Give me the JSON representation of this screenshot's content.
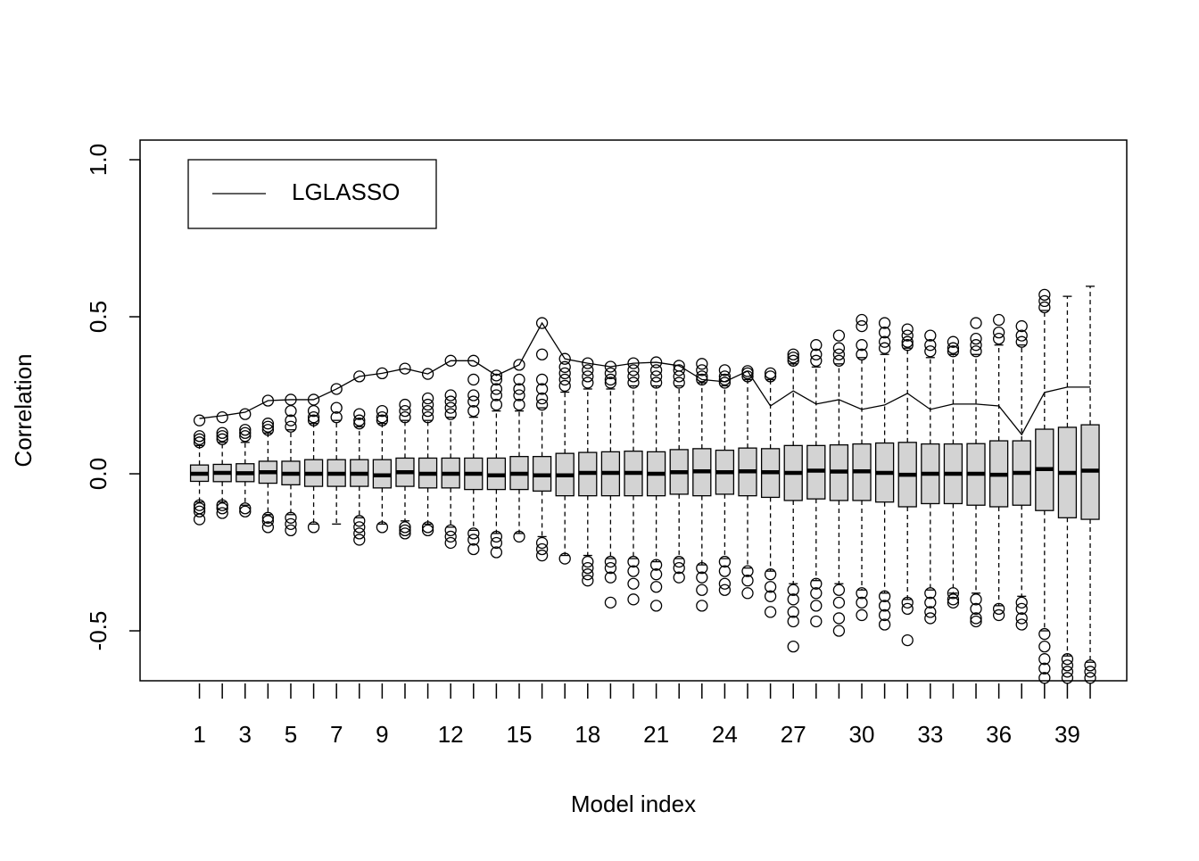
{
  "chart_data": {
    "type": "boxplot",
    "xlabel": "Model index",
    "ylabel": "Correlation",
    "categories": [
      "1",
      null,
      "3",
      null,
      "5",
      null,
      "7",
      null,
      "9",
      null,
      null,
      "12",
      null,
      null,
      "15",
      null,
      null,
      "18",
      null,
      null,
      "21",
      null,
      null,
      "24",
      null,
      null,
      "27",
      null,
      null,
      "30",
      null,
      null,
      "33",
      null,
      null,
      "36",
      null,
      null,
      "39",
      null
    ],
    "box_color": "#d3d3d3",
    "whislo": [
      -0.09,
      -0.09,
      -0.1,
      -0.13,
      -0.13,
      -0.16,
      -0.16,
      -0.14,
      -0.16,
      -0.15,
      -0.16,
      -0.17,
      -0.18,
      -0.19,
      -0.19,
      -0.2,
      -0.26,
      -0.26,
      -0.27,
      -0.27,
      -0.28,
      -0.27,
      -0.29,
      -0.27,
      -0.3,
      -0.31,
      -0.35,
      -0.34,
      -0.35,
      -0.37,
      -0.38,
      -0.4,
      -0.37,
      -0.38,
      -0.38,
      -0.42,
      -0.39,
      -0.5,
      -0.58,
      -0.6
    ],
    "q1": [
      -0.024,
      -0.025,
      -0.025,
      -0.03,
      -0.035,
      -0.04,
      -0.04,
      -0.04,
      -0.045,
      -0.04,
      -0.045,
      -0.045,
      -0.05,
      -0.05,
      -0.05,
      -0.055,
      -0.07,
      -0.07,
      -0.07,
      -0.07,
      -0.07,
      -0.065,
      -0.07,
      -0.065,
      -0.07,
      -0.075,
      -0.085,
      -0.08,
      -0.085,
      -0.085,
      -0.09,
      -0.105,
      -0.095,
      -0.095,
      -0.1,
      -0.105,
      -0.1,
      -0.117,
      -0.14,
      -0.145
    ],
    "median": [
      0.0,
      0.003,
      0.002,
      0.005,
      0.0,
      0.0,
      0.0,
      0.0,
      -0.005,
      0.005,
      0.0,
      0.0,
      0.0,
      -0.005,
      0.0,
      -0.005,
      -0.005,
      0.003,
      0.003,
      0.003,
      0.0,
      0.005,
      0.008,
      0.005,
      0.008,
      0.005,
      0.003,
      0.01,
      0.007,
      0.008,
      0.003,
      -0.003,
      0.0,
      0.0,
      0.0,
      -0.003,
      0.003,
      0.015,
      0.003,
      0.01
    ],
    "q3": [
      0.028,
      0.03,
      0.032,
      0.04,
      0.04,
      0.045,
      0.045,
      0.045,
      0.045,
      0.05,
      0.05,
      0.05,
      0.05,
      0.05,
      0.055,
      0.055,
      0.065,
      0.068,
      0.07,
      0.072,
      0.07,
      0.077,
      0.08,
      0.075,
      0.082,
      0.08,
      0.09,
      0.09,
      0.092,
      0.095,
      0.098,
      0.1,
      0.095,
      0.095,
      0.096,
      0.105,
      0.105,
      0.142,
      0.148,
      0.156
    ],
    "whishi": [
      0.09,
      0.1,
      0.1,
      0.13,
      0.14,
      0.16,
      0.17,
      0.15,
      0.16,
      0.17,
      0.17,
      0.18,
      0.18,
      0.2,
      0.2,
      0.21,
      0.26,
      0.27,
      0.27,
      0.28,
      0.28,
      0.28,
      0.29,
      0.28,
      0.3,
      0.3,
      0.35,
      0.34,
      0.35,
      0.37,
      0.38,
      0.4,
      0.37,
      0.38,
      0.38,
      0.41,
      0.41,
      0.52,
      0.565,
      0.597
    ],
    "fliers": [
      [
        0.17,
        0.12,
        0.11,
        0.1,
        -0.1,
        -0.11,
        -0.12,
        -0.145
      ],
      [
        0.18,
        0.13,
        0.12,
        0.11,
        -0.1,
        -0.11,
        -0.125
      ],
      [
        0.19,
        0.14,
        0.13,
        0.12,
        -0.11,
        -0.12
      ],
      [
        0.233,
        0.16,
        0.15,
        0.14,
        -0.14,
        -0.15,
        -0.17
      ],
      [
        0.236,
        0.2,
        0.17,
        0.15,
        -0.14,
        -0.16,
        -0.18
      ],
      [
        0.236,
        0.2,
        0.18,
        0.17,
        -0.17
      ],
      [
        0.27,
        0.21,
        0.18
      ],
      [
        0.31,
        0.19,
        0.17,
        0.16,
        -0.15,
        -0.17,
        -0.19,
        -0.21
      ],
      [
        0.32,
        0.2,
        0.18,
        0.17,
        -0.17
      ],
      [
        0.335,
        0.22,
        0.2,
        0.18,
        -0.17,
        -0.18,
        -0.19
      ],
      [
        0.318,
        0.24,
        0.22,
        0.2,
        0.18,
        -0.17,
        -0.18
      ],
      [
        0.36,
        0.25,
        0.23,
        0.21,
        0.19,
        -0.18,
        -0.2,
        -0.22
      ],
      [
        0.36,
        0.3,
        0.25,
        0.23,
        0.2,
        -0.19,
        -0.21,
        -0.24
      ],
      [
        0.313,
        0.3,
        0.27,
        0.25,
        0.22,
        -0.2,
        -0.22,
        -0.25
      ],
      [
        0.347,
        0.3,
        0.27,
        0.25,
        0.22,
        -0.2
      ],
      [
        0.48,
        0.38,
        0.3,
        0.27,
        0.24,
        0.22,
        -0.22,
        -0.24,
        -0.26
      ],
      [
        0.366,
        0.34,
        0.32,
        0.3,
        0.28,
        -0.27
      ],
      [
        0.352,
        0.33,
        0.31,
        0.29,
        -0.28,
        -0.3,
        -0.32,
        -0.34
      ],
      [
        0.341,
        0.32,
        0.3,
        0.29,
        -0.28,
        -0.3,
        -0.33,
        -0.41
      ],
      [
        0.352,
        0.33,
        0.31,
        0.29,
        -0.28,
        -0.31,
        -0.35,
        -0.4
      ],
      [
        0.355,
        0.33,
        0.31,
        0.29,
        -0.29,
        -0.32,
        -0.36,
        -0.42
      ],
      [
        0.344,
        0.33,
        0.31,
        0.29,
        -0.28,
        -0.3,
        -0.33
      ],
      [
        0.35,
        0.33,
        0.31,
        0.3,
        -0.3,
        -0.33,
        -0.37,
        -0.42
      ],
      [
        0.33,
        0.31,
        0.3,
        0.29,
        -0.28,
        -0.31,
        -0.35,
        -0.37
      ],
      [
        0.327,
        0.32,
        0.31,
        -0.31,
        -0.34,
        -0.38
      ],
      [
        0.32,
        0.31,
        -0.32,
        -0.36,
        -0.39,
        -0.44
      ],
      [
        0.38,
        0.37,
        0.36,
        -0.37,
        -0.4,
        -0.44,
        -0.47,
        -0.55
      ],
      [
        0.41,
        0.38,
        0.36,
        -0.35,
        -0.38,
        -0.42,
        -0.47
      ],
      [
        0.44,
        0.4,
        0.38,
        0.36,
        -0.37,
        -0.41,
        -0.46,
        -0.5
      ],
      [
        0.49,
        0.47,
        0.41,
        0.38,
        -0.38,
        -0.41,
        -0.45
      ],
      [
        0.48,
        0.45,
        0.42,
        0.4,
        -0.39,
        -0.42,
        -0.45,
        -0.48
      ],
      [
        0.46,
        0.44,
        0.42,
        0.41,
        -0.41,
        -0.43,
        -0.53
      ],
      [
        0.44,
        0.41,
        0.39,
        -0.38,
        -0.41,
        -0.44,
        -0.46
      ],
      [
        0.42,
        0.4,
        0.39,
        -0.38,
        -0.4,
        -0.41
      ],
      [
        0.48,
        0.43,
        0.41,
        0.39,
        -0.4,
        -0.43,
        -0.46,
        -0.47
      ],
      [
        0.49,
        0.45,
        0.43,
        -0.43,
        -0.45
      ],
      [
        0.47,
        0.44,
        0.42,
        -0.41,
        -0.43,
        -0.46,
        -0.48
      ],
      [
        0.57,
        0.55,
        0.53,
        -0.51,
        -0.55,
        -0.59,
        -0.62,
        -0.65
      ],
      [
        -0.59,
        -0.61,
        -0.63,
        -0.65
      ],
      [
        -0.61,
        -0.63,
        -0.65
      ]
    ],
    "series": [
      {
        "name": "LGLASSO",
        "color": "#000000",
        "values": [
          0.176,
          0.185,
          0.196,
          0.233,
          0.236,
          0.236,
          0.27,
          0.31,
          0.32,
          0.335,
          0.318,
          0.36,
          0.36,
          0.313,
          0.347,
          0.48,
          0.366,
          0.352,
          0.341,
          0.352,
          0.355,
          0.344,
          0.3,
          0.293,
          0.327,
          0.216,
          0.264,
          0.222,
          0.236,
          0.205,
          0.219,
          0.256,
          0.205,
          0.222,
          0.222,
          0.216,
          0.125,
          0.259,
          0.276,
          0.276
        ]
      }
    ],
    "ylim": [
      -0.659,
      1.0625
    ],
    "yticks": [
      -0.5,
      {
        "value": 0,
        "label": "0.0"
      },
      0.5,
      {
        "value": 1,
        "label": "1.0"
      }
    ],
    "legend": "topleft"
  }
}
